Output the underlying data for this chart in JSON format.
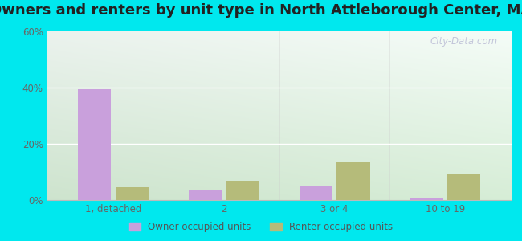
{
  "title": "Owners and renters by unit type in North Attleborough Center, MA",
  "categories": [
    "1, detached",
    "2",
    "3 or 4",
    "10 to 19"
  ],
  "owner_values": [
    39.5,
    3.5,
    5.0,
    1.0
  ],
  "renter_values": [
    4.5,
    7.0,
    13.5,
    9.5
  ],
  "owner_color": "#c9a0dc",
  "renter_color": "#b5bb7a",
  "ylim": [
    0,
    60
  ],
  "yticks": [
    0,
    20,
    40,
    60
  ],
  "ytick_labels": [
    "0%",
    "20%",
    "40%",
    "60%"
  ],
  "background_outer": "#00e8ee",
  "title_fontsize": 13,
  "legend_labels": [
    "Owner occupied units",
    "Renter occupied units"
  ],
  "bar_width": 0.3,
  "watermark": "City-Data.com"
}
